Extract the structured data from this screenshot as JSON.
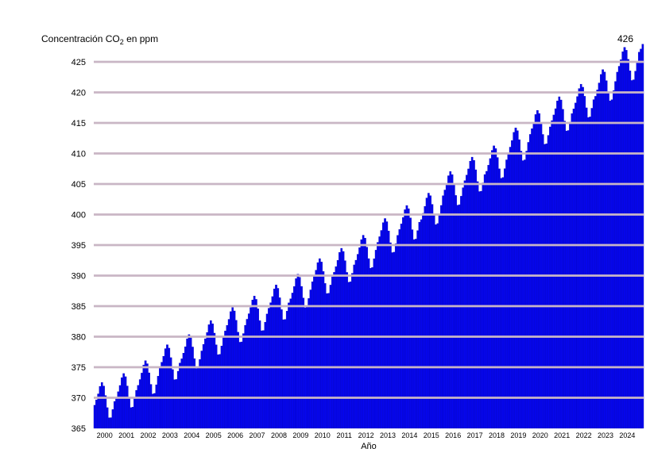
{
  "chart_data": {
    "type": "bar",
    "description": "Monthly atmospheric CO2 concentration (Keeling curve), seasonal sawtooth rising from about 369 ppm in 2000 to about 428 ppm in early 2025",
    "title": {
      "prefix": "Concentración CO",
      "sub": "2",
      "suffix": " en ppm"
    },
    "xlabel": "Año",
    "annotation": "426",
    "unit": "ppm",
    "x_tick_labels": [
      "2000",
      "2001",
      "2002",
      "2003",
      "2004",
      "2005",
      "2006",
      "2007",
      "2008",
      "2009",
      "2010",
      "2011",
      "2012",
      "2013",
      "2014",
      "2015",
      "2016",
      "2017",
      "2018",
      "2019",
      "2020",
      "2021",
      "2022",
      "2023",
      "2024"
    ],
    "y_ticks": [
      365,
      370,
      375,
      380,
      385,
      390,
      395,
      400,
      405,
      410,
      415,
      420,
      425
    ],
    "y_gridlines": [
      370,
      375,
      380,
      385,
      390,
      395,
      400,
      405,
      410,
      415,
      420,
      425
    ],
    "ylim": [
      365,
      428
    ],
    "grid": "horizontal",
    "legend": "none",
    "years": [
      2000,
      2001,
      2002,
      2003,
      2004,
      2005,
      2006,
      2007,
      2008,
      2009,
      2010,
      2011,
      2012,
      2013,
      2014,
      2015,
      2016,
      2017,
      2018,
      2019,
      2020,
      2021,
      2022,
      2023,
      2024
    ],
    "annual_means": [
      369.59,
      371.14,
      373.28,
      375.8,
      377.52,
      379.8,
      381.9,
      383.79,
      385.6,
      387.43,
      389.9,
      391.65,
      393.85,
      396.52,
      398.65,
      400.83,
      404.24,
      406.55,
      408.52,
      411.44,
      414.24,
      416.45,
      418.56,
      421.08,
      424.61
    ],
    "seasonal_offsets": [
      -0.1,
      0.65,
      1.5,
      2.6,
      3.1,
      2.4,
      0.7,
      -1.4,
      -3.2,
      -3.3,
      -2.1,
      -0.9
    ],
    "last_year_growth": 2.6,
    "extra_months": {
      "labels": [
        "2025-01",
        "2025-02",
        "2025-03"
      ],
      "values": [
        426.6,
        427.1,
        427.9
      ]
    },
    "colors": {
      "bar_fill": "#0606ee",
      "bar_edge": "#0000b8",
      "gridline": "#c9b6c5",
      "text": "#000000",
      "background": "#ffffff"
    }
  }
}
